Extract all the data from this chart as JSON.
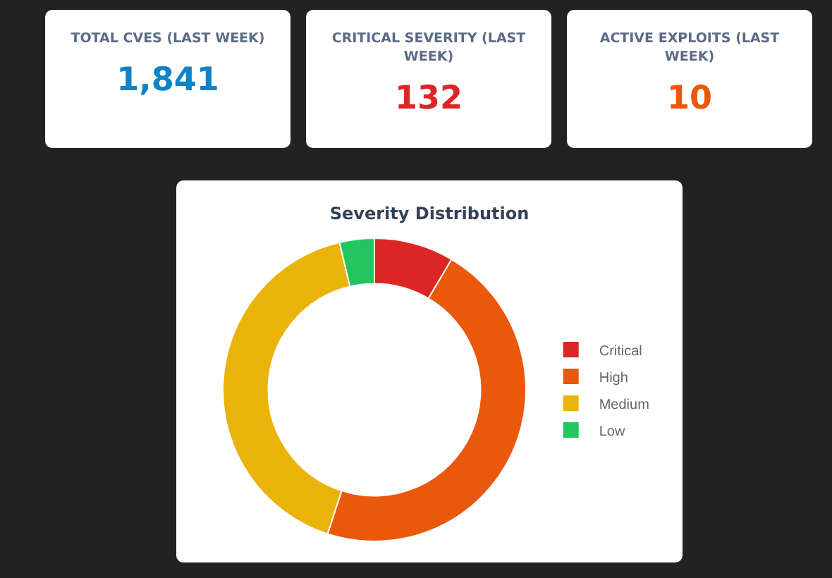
{
  "chart_data": [
    {
      "type": "other",
      "title": "TOTAL CVES (LAST WEEK)",
      "values": [
        1841
      ],
      "value_labels": [
        "1,841"
      ]
    },
    {
      "type": "other",
      "title": "CRITICAL SEVERITY (LAST WEEK)",
      "values": [
        132
      ],
      "value_labels": [
        "132"
      ]
    },
    {
      "type": "other",
      "title": "ACTIVE EXPLOITS (LAST WEEK)",
      "values": [
        10
      ],
      "value_labels": [
        "10"
      ]
    },
    {
      "type": "donut",
      "title": "Severity Distribution",
      "categories": [
        "Critical",
        "High",
        "Medium",
        "Low"
      ],
      "values": [
        8.5,
        46.5,
        41.3,
        3.7
      ],
      "colors": [
        "#dc2626",
        "#ea580c",
        "#eab308",
        "#22c55e"
      ],
      "legend": "right"
    }
  ]
}
